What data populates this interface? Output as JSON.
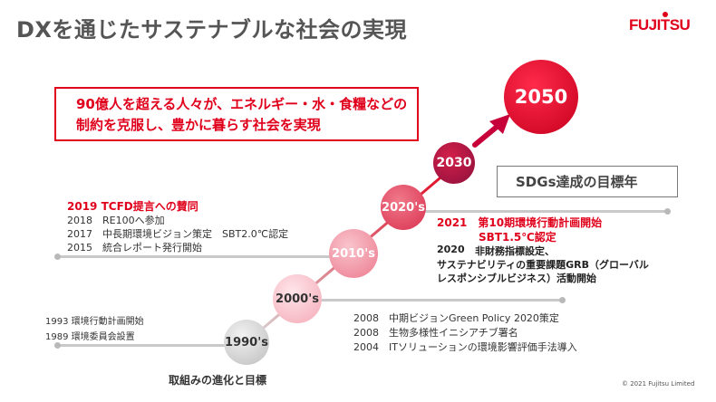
{
  "title": "DXを通じたサステナブルな社会の実現",
  "logo": "FUJITSU",
  "message_lines": [
    "90億人を超える人々が、エネルギー・水・食糧などの",
    "制約を克服し、豊かに暮らす社会を実現"
  ],
  "milestones": {
    "m1990": "1990's",
    "m2000": "2000's",
    "m2010": "2010's",
    "m2020": "2020's",
    "m2030": "2030",
    "m2050": "2050"
  },
  "sdgs_goal": "SDGs達成の目標年",
  "left_2010s": {
    "highlight": "2019 TCFD提言への賛同",
    "items": [
      "2018　RE100へ参加",
      "2017　中長期環境ビジョン策定　SBT2.0℃認定",
      "2015　統合レポート発行開始"
    ]
  },
  "left_1990s": {
    "items": [
      "1993 環境行動計画開始",
      "1989 環境委員会設置"
    ]
  },
  "right_2020s": {
    "highlight_lines": [
      "2021　第10期環境行動計画開始",
      "SBT1.5℃認定"
    ],
    "year": "2020",
    "detail_lines": [
      "非財務指標設定、",
      "サステナビリティの重要課題GRB（グローバル",
      "レスポンシブルビジネス）活動開始"
    ]
  },
  "right_2000s": {
    "items": [
      "2008　中期ビジョンGreen Policy 2020策定",
      "2008　生物多様性イニシアチブ署名",
      "2004　ITソリューションの環境影響評価手法導入"
    ]
  },
  "caption": "取組みの進化と目標",
  "copyright": "© 2021 Fujitsu Limited",
  "colors": {
    "brand_red": "#e0001b",
    "gray_line": "#c9c9c9",
    "dark_red": "#a8002a"
  },
  "icons": [
    "arrow-up-right-icon"
  ]
}
